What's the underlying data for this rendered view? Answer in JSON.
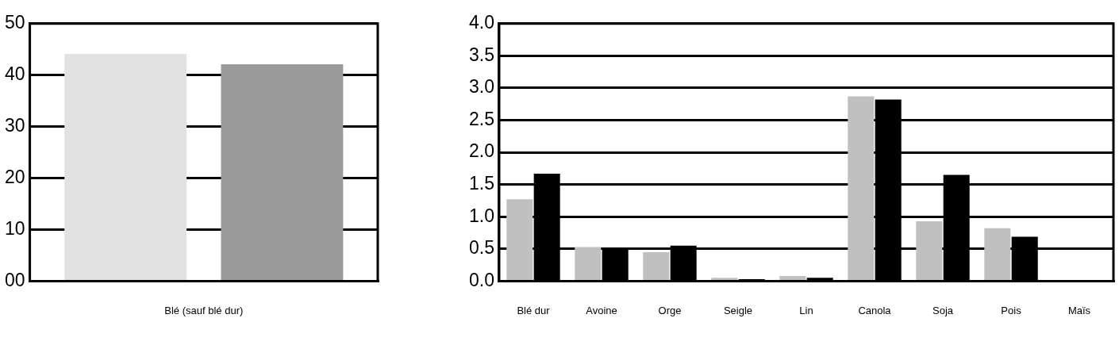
{
  "chart_data": [
    {
      "type": "bar",
      "categories": [
        "Blé (sauf blé dur)"
      ],
      "series": [
        {
          "color": "#e2e2e2",
          "values": [
            44.1
          ]
        },
        {
          "color": "#9a9a9a",
          "values": [
            42.1
          ]
        }
      ],
      "ylim": [
        0,
        50
      ],
      "yticks": [
        {
          "value": 0,
          "label": "00"
        },
        {
          "value": 10,
          "label": "10"
        },
        {
          "value": 20,
          "label": "20"
        },
        {
          "value": 30,
          "label": "30"
        },
        {
          "value": 40,
          "label": "40"
        },
        {
          "value": 50,
          "label": "50"
        }
      ],
      "grid": "y",
      "legend": false
    },
    {
      "type": "bar",
      "categories": [
        "Blé dur",
        "Avoine",
        "Orge",
        "Seigle",
        "Lin",
        "Canola",
        "Soja",
        "Pois",
        "Maïs"
      ],
      "series": [
        {
          "color": "#c0c0c0",
          "values": [
            1.27,
            0.53,
            0.45,
            0.05,
            0.08,
            2.87,
            0.93,
            0.82,
            0
          ]
        },
        {
          "color": "#000000",
          "values": [
            1.67,
            0.5,
            0.55,
            0.03,
            0.05,
            2.82,
            1.65,
            0.69,
            0
          ]
        }
      ],
      "ylim": [
        0,
        4
      ],
      "yticks": [
        {
          "value": 0,
          "label": "0.0"
        },
        {
          "value": 0.5,
          "label": "0.5"
        },
        {
          "value": 1,
          "label": "1.0"
        },
        {
          "value": 1.5,
          "label": "1.5"
        },
        {
          "value": 2,
          "label": "2.0"
        },
        {
          "value": 2.5,
          "label": "2.5"
        },
        {
          "value": 3,
          "label": "3.0"
        },
        {
          "value": 3.5,
          "label": "3.5"
        },
        {
          "value": 4,
          "label": "4.0"
        }
      ],
      "grid": "y",
      "legend": false
    }
  ]
}
